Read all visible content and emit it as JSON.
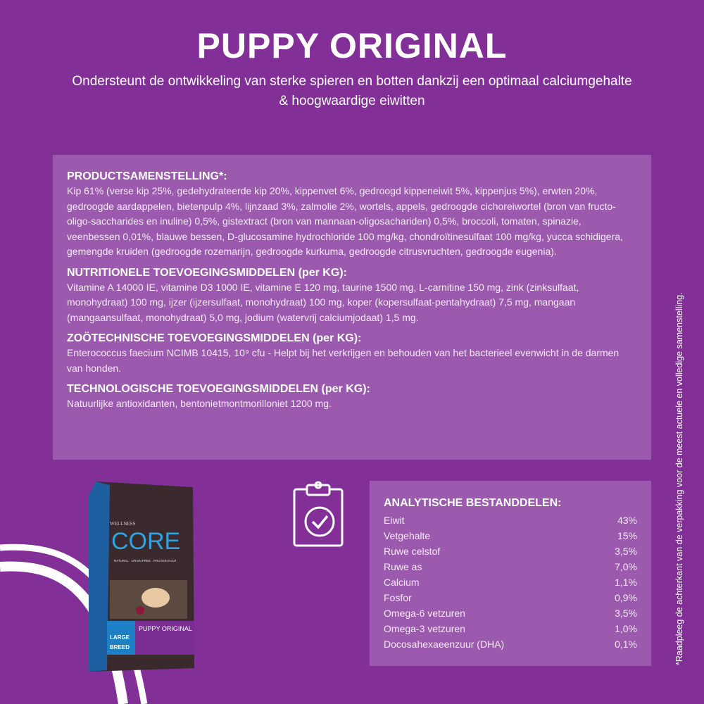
{
  "header": {
    "title": "PUPPY ORIGINAL",
    "subtitle": "Ondersteunt de ontwikkeling van sterke spieren en botten dankzij een optimaal calciumgehalte & hoogwaardige eiwitten"
  },
  "composition": [
    {
      "heading": "PRODUCTSAMENSTELLING*:",
      "body": "Kip 61% (verse kip 25%, gedehydrateerde kip 20%, kippenvet 6%, gedroogd kippeneiwit 5%, kippenjus 5%), erwten 20%, gedroogde aardappelen, bietenpulp 4%, lijnzaad 3%, zalmolie 2%, wortels, appels, gedroogde cichoreiwortel (bron van fructo-oligo-saccharides en inuline) 0,5%, gistextract (bron van mannaan-oligosachariden) 0,5%, broccoli, tomaten, spinazie, veenbessen 0,01%, blauwe bessen, D-glucosamine hydrochloride 100 mg/kg, chondroïtinesulfaat 100 mg/kg, yucca schidigera, gemengde kruiden (gedroogde rozemarijn, gedroogde kurkuma, gedroogde citrusvruchten, gedroogde eugenia)."
    },
    {
      "heading": "NUTRITIONELE TOEVOEGINGSMIDDELEN (per KG):",
      "body": "Vitamine A 14000 IE, vitamine D3 1000 IE, vitamine E 120 mg, taurine 1500 mg, L-carnitine 150 mg, zink (zinksulfaat, monohydraat) 100 mg, ijzer (ijzersulfaat, monohydraat) 100 mg, koper (kopersulfaat-pentahydraat) 7,5 mg, mangaan (mangaansulfaat, monohydraat) 5,0 mg, jodium (watervrij calciumjodaat) 1,5 mg."
    },
    {
      "heading": "ZOÖTECHNISCHE TOEVOEGINGSMIDDELEN (per KG):",
      "body": "Enterococcus faecium NCIMB 10415, 10⁹ cfu - Helpt bij het verkrijgen en behouden van het bacterieel evenwicht in de darmen van honden."
    },
    {
      "heading": "TECHNOLOGISCHE TOEVOEGINGSMIDDELEN (per KG):",
      "body": "Natuurlijke antioxidanten, bentonietmontmorilloniet 1200 mg."
    }
  ],
  "analysis": {
    "heading": "ANALYTISCHE BESTANDDELEN:",
    "rows": [
      {
        "name": "Eiwit",
        "value": "43%"
      },
      {
        "name": "Vetgehalte",
        "value": "15%"
      },
      {
        "name": "Ruwe celstof",
        "value": "3,5%"
      },
      {
        "name": "Ruwe as",
        "value": "7,0%"
      },
      {
        "name": "Calcium",
        "value": "1,1%"
      },
      {
        "name": "Fosfor",
        "value": "0,9%"
      },
      {
        "name": "Omega-6 vetzuren",
        "value": "3,5%"
      },
      {
        "name": "Omega-3 vetzuren",
        "value": "1,0%"
      },
      {
        "name": "Docosahexaeenzuur (DHA)",
        "value": "0,1%"
      }
    ]
  },
  "side_note": "*Raadpleeg de achterkant van de verpakking voor de meest actuele en volledige samenstelling.",
  "product_image": {
    "brand": "WELLNESS CORE",
    "name": "PUPPY ORIGINAL",
    "badge": "LARGE BREED",
    "tagline": "NATURAL · GRAIN FREE · PROTEIN RICH"
  },
  "icons": {
    "clipboard": "clipboard-check-icon"
  },
  "colors": {
    "background": "#822f98",
    "panel": "#9b5aae",
    "text": "#ffffff"
  }
}
